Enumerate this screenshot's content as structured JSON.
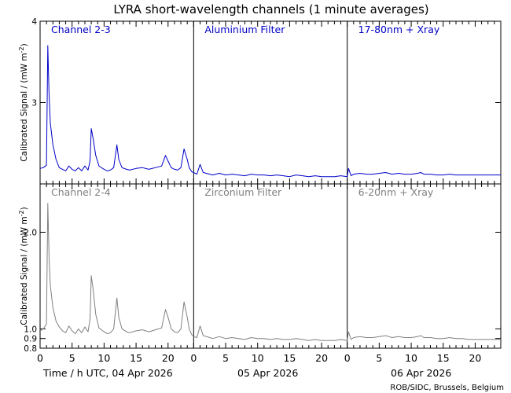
{
  "title": "LYRA short-wavelength channels (1 minute averages)",
  "credit": "ROB/SIDC, Brussels, Belgium",
  "colors": {
    "upper": "#0000c8",
    "lower": "#808080",
    "axis": "#000000"
  },
  "chart_data": {
    "type": "line",
    "title": "LYRA short-wavelength channels (1 minute averages)",
    "xlabel": "Time / h UTC, 04 Apr 2026",
    "day_labels": [
      "05 Apr 2026",
      "06 Apr 2026"
    ],
    "x_range_hours": [
      0,
      72
    ],
    "x_tick_labels": [
      "0",
      "5",
      "10",
      "15",
      "20"
    ],
    "grid": false,
    "panels": [
      {
        "ylabel": "Calibrated Signal / (mW m",
        "ylabel_sup": "-2",
        "ylabel_tail": ")",
        "ylim": [
          2.0,
          4.0
        ],
        "y_ticks": [
          3,
          4
        ],
        "y_tick_labels": [
          "3",
          "4"
        ],
        "channel_labels": [
          "Channel 2-3",
          "Aluminium Filter",
          "17-80nm + Xray"
        ],
        "series": [
          {
            "name": "Channel 2-3",
            "x": [
              0,
              0.5,
              1,
              1.2,
              1.4,
              1.6,
              2,
              2.5,
              3,
              3.5,
              4,
              4.5,
              5,
              5.5,
              6,
              6.5,
              7,
              7.5,
              7.8,
              8,
              8.3,
              8.7,
              9.2,
              10,
              10.5,
              11,
              11.5,
              12,
              12.3,
              12.8,
              13.5,
              14,
              15,
              16,
              17,
              18,
              19,
              19.6,
              20,
              20.5,
              21,
              21.5,
              22,
              22.5,
              23,
              23.3,
              23.7,
              24,
              24.5,
              25,
              25.5,
              26,
              26.5,
              27,
              28,
              29,
              30,
              31,
              32,
              33,
              34,
              35,
              36,
              37,
              38,
              39,
              40,
              41,
              42,
              43,
              44,
              45,
              46,
              47,
              48,
              48.2,
              48.6,
              49,
              50,
              51,
              52,
              53,
              54,
              54.5,
              55,
              56,
              57,
              58,
              59,
              59.5,
              60,
              61,
              62,
              63,
              64,
              65,
              66,
              67,
              68,
              69,
              70,
              71,
              72
            ],
            "y": [
              2.19,
              2.2,
              2.23,
              3.7,
              3.1,
              2.75,
              2.48,
              2.3,
              2.2,
              2.18,
              2.16,
              2.22,
              2.18,
              2.16,
              2.2,
              2.16,
              2.22,
              2.17,
              2.28,
              2.68,
              2.55,
              2.35,
              2.22,
              2.18,
              2.16,
              2.17,
              2.2,
              2.48,
              2.3,
              2.2,
              2.18,
              2.17,
              2.19,
              2.2,
              2.18,
              2.2,
              2.22,
              2.35,
              2.28,
              2.2,
              2.18,
              2.17,
              2.2,
              2.43,
              2.3,
              2.2,
              2.15,
              2.14,
              2.12,
              2.24,
              2.14,
              2.13,
              2.12,
              2.11,
              2.13,
              2.11,
              2.12,
              2.11,
              2.1,
              2.12,
              2.11,
              2.11,
              2.1,
              2.11,
              2.1,
              2.09,
              2.11,
              2.1,
              2.09,
              2.1,
              2.09,
              2.09,
              2.09,
              2.1,
              2.09,
              2.19,
              2.1,
              2.12,
              2.13,
              2.12,
              2.12,
              2.13,
              2.14,
              2.13,
              2.12,
              2.13,
              2.12,
              2.12,
              2.13,
              2.14,
              2.12,
              2.12,
              2.11,
              2.11,
              2.12,
              2.11,
              2.11,
              2.11,
              2.11,
              2.11,
              2.11,
              2.11,
              2.11
            ]
          }
        ]
      },
      {
        "ylabel": "Calibrated Signal / (mW m",
        "ylabel_sup": "-2",
        "ylabel_tail": ")",
        "ylim": [
          0.8,
          2.5
        ],
        "y_ticks": [
          0.8,
          0.9,
          1.0,
          2.0
        ],
        "y_tick_labels": [
          "0.8",
          "0.9",
          "1.0",
          "2.0"
        ],
        "channel_labels": [
          "Channel 2-4",
          "Zirconium Filter",
          "6-20nm + Xray"
        ],
        "series": [
          {
            "name": "Channel 2-4",
            "x": [
              0,
              0.5,
              1,
              1.2,
              1.4,
              1.6,
              2,
              2.5,
              3,
              3.5,
              4,
              4.5,
              5,
              5.5,
              6,
              6.5,
              7,
              7.5,
              7.8,
              8,
              8.3,
              8.7,
              9.2,
              10,
              10.5,
              11,
              11.5,
              12,
              12.3,
              12.8,
              13.5,
              14,
              15,
              16,
              17,
              18,
              19,
              19.6,
              20,
              20.5,
              21,
              21.5,
              22,
              22.5,
              23,
              23.3,
              23.7,
              24,
              24.5,
              25,
              25.5,
              26,
              26.5,
              27,
              28,
              29,
              30,
              31,
              32,
              33,
              34,
              35,
              36,
              37,
              38,
              39,
              40,
              41,
              42,
              43,
              44,
              45,
              46,
              47,
              48,
              48.2,
              48.6,
              49,
              50,
              51,
              52,
              53,
              54,
              54.5,
              55,
              56,
              57,
              58,
              59,
              59.5,
              60,
              61,
              62,
              63,
              64,
              65,
              66,
              67,
              68,
              69,
              70,
              71,
              72
            ],
            "y": [
              0.98,
              1.0,
              1.05,
              2.3,
              1.75,
              1.45,
              1.22,
              1.08,
              1.02,
              0.98,
              0.96,
              1.03,
              0.98,
              0.95,
              1.0,
              0.96,
              1.02,
              0.97,
              1.1,
              1.55,
              1.4,
              1.15,
              1.01,
              0.97,
              0.95,
              0.96,
              1.0,
              1.32,
              1.12,
              1.0,
              0.97,
              0.96,
              0.98,
              0.99,
              0.97,
              0.99,
              1.01,
              1.2,
              1.12,
              1.0,
              0.97,
              0.96,
              1.0,
              1.28,
              1.12,
              1.0,
              0.94,
              0.92,
              0.91,
              1.03,
              0.93,
              0.92,
              0.91,
              0.9,
              0.92,
              0.9,
              0.91,
              0.9,
              0.89,
              0.91,
              0.9,
              0.9,
              0.89,
              0.9,
              0.89,
              0.89,
              0.9,
              0.89,
              0.88,
              0.89,
              0.88,
              0.88,
              0.88,
              0.89,
              0.88,
              0.97,
              0.89,
              0.91,
              0.92,
              0.91,
              0.91,
              0.92,
              0.93,
              0.92,
              0.91,
              0.92,
              0.91,
              0.91,
              0.92,
              0.93,
              0.91,
              0.91,
              0.9,
              0.9,
              0.91,
              0.9,
              0.9,
              0.89,
              0.89,
              0.89,
              0.89,
              0.89,
              0.89
            ]
          }
        ]
      }
    ]
  }
}
